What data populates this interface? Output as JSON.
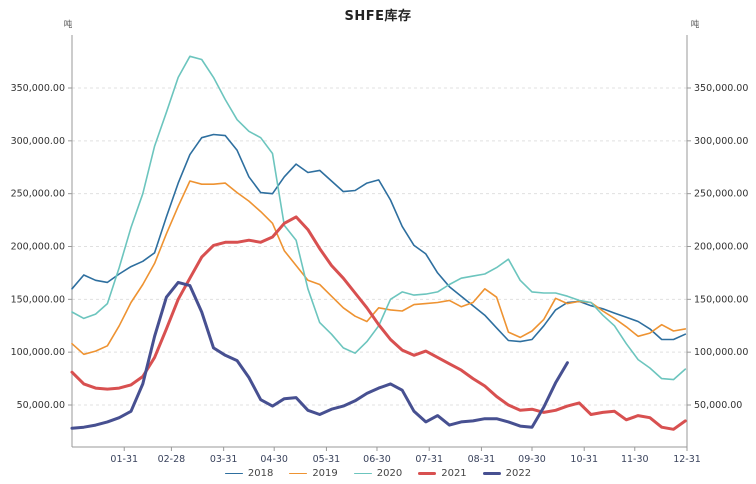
{
  "title": "SHFE库存",
  "chart_data": {
    "type": "line",
    "title": "SHFE库存",
    "y_unit": "吨",
    "xlabel": "",
    "ylabel": "吨",
    "ylim": [
      10000,
      400000
    ],
    "grid": "dashed horizontal",
    "legend_position": "bottom",
    "x_sampling": "weekly points, day = index * 7, x axis spans Jan 1 to Dec 31",
    "y_ticks": [
      50000,
      100000,
      150000,
      200000,
      250000,
      300000,
      350000
    ],
    "x_ticks": [
      {
        "label": "01-31",
        "day": 31
      },
      {
        "label": "02-28",
        "day": 59
      },
      {
        "label": "03-31",
        "day": 90
      },
      {
        "label": "04-30",
        "day": 120
      },
      {
        "label": "05-31",
        "day": 151
      },
      {
        "label": "06-30",
        "day": 181
      },
      {
        "label": "07-31",
        "day": 212
      },
      {
        "label": "08-31",
        "day": 243
      },
      {
        "label": "09-30",
        "day": 273
      },
      {
        "label": "10-31",
        "day": 304
      },
      {
        "label": "11-30",
        "day": 334
      },
      {
        "label": "12-31",
        "day": 365
      }
    ],
    "series": [
      {
        "name": "2018",
        "color": "#2e6f9f",
        "line_width": 1.6,
        "values": [
          160000,
          173000,
          168000,
          166000,
          174000,
          181000,
          186000,
          194000,
          228000,
          260000,
          287000,
          303000,
          306000,
          305000,
          291000,
          266000,
          251000,
          250000,
          266000,
          278000,
          270000,
          272000,
          262000,
          252000,
          253000,
          260000,
          263000,
          244000,
          219000,
          201000,
          193000,
          175000,
          162000,
          153000,
          144000,
          135000,
          123000,
          111000,
          110000,
          112000,
          125000,
          140000,
          147000,
          148000,
          144000,
          141000,
          137000,
          133000,
          129000,
          122000,
          112000,
          112000,
          117000
        ]
      },
      {
        "name": "2019",
        "color": "#ee9332",
        "line_width": 1.6,
        "values": [
          108000,
          98000,
          101000,
          106000,
          125000,
          147000,
          164000,
          184000,
          212000,
          238000,
          262000,
          259000,
          259000,
          260000,
          251000,
          243000,
          233000,
          222000,
          196000,
          182000,
          168000,
          164000,
          153000,
          142000,
          134000,
          129000,
          142000,
          140000,
          139000,
          145000,
          146000,
          147000,
          149000,
          143000,
          147000,
          160000,
          152000,
          119000,
          114000,
          120000,
          131000,
          151000,
          146000,
          148000,
          147000,
          139000,
          132000,
          124000,
          115000,
          118000,
          126000,
          120000,
          122000
        ]
      },
      {
        "name": "2020",
        "color": "#6cc5be",
        "line_width": 1.6,
        "values": [
          138000,
          132000,
          136000,
          146000,
          180000,
          218000,
          250000,
          295000,
          327000,
          360000,
          380000,
          377000,
          360000,
          339000,
          320000,
          309000,
          303000,
          288000,
          220000,
          206000,
          160000,
          128000,
          117000,
          104000,
          99000,
          110000,
          125000,
          150000,
          157000,
          154000,
          155000,
          157000,
          164000,
          170000,
          172000,
          174000,
          180000,
          188000,
          168000,
          157000,
          156000,
          156000,
          153000,
          149000,
          147000,
          135000,
          125000,
          108000,
          93000,
          85000,
          75000,
          74000,
          84000
        ]
      },
      {
        "name": "2021",
        "color": "#d85050",
        "line_width": 3,
        "values": [
          81000,
          70000,
          66000,
          65000,
          66000,
          69000,
          77000,
          95000,
          122000,
          150000,
          170000,
          190000,
          201000,
          204000,
          204000,
          206000,
          204000,
          209000,
          222000,
          228000,
          216000,
          198000,
          182000,
          170000,
          156000,
          142000,
          126000,
          112000,
          102000,
          97000,
          101000,
          95000,
          89000,
          83000,
          75000,
          68000,
          58000,
          50000,
          45000,
          46000,
          43000,
          45000,
          49000,
          52000,
          41000,
          43000,
          44000,
          36000,
          40000,
          38000,
          29000,
          27000,
          35000
        ]
      },
      {
        "name": "2022",
        "color": "#475091",
        "line_width": 3,
        "values": [
          28000,
          29000,
          31000,
          34000,
          38000,
          44000,
          70000,
          115000,
          152000,
          166000,
          163000,
          138000,
          104000,
          97000,
          92000,
          76000,
          55000,
          49000,
          56000,
          57000,
          45000,
          41000,
          46000,
          49000,
          54000,
          61000,
          66000,
          70000,
          64000,
          44000,
          34000,
          40000,
          31000,
          34000,
          35000,
          37000,
          37000,
          34000,
          30000,
          29000,
          48000,
          71000,
          90000
        ]
      }
    ]
  },
  "legend": {
    "items": [
      "2018",
      "2019",
      "2020",
      "2021",
      "2022"
    ]
  }
}
